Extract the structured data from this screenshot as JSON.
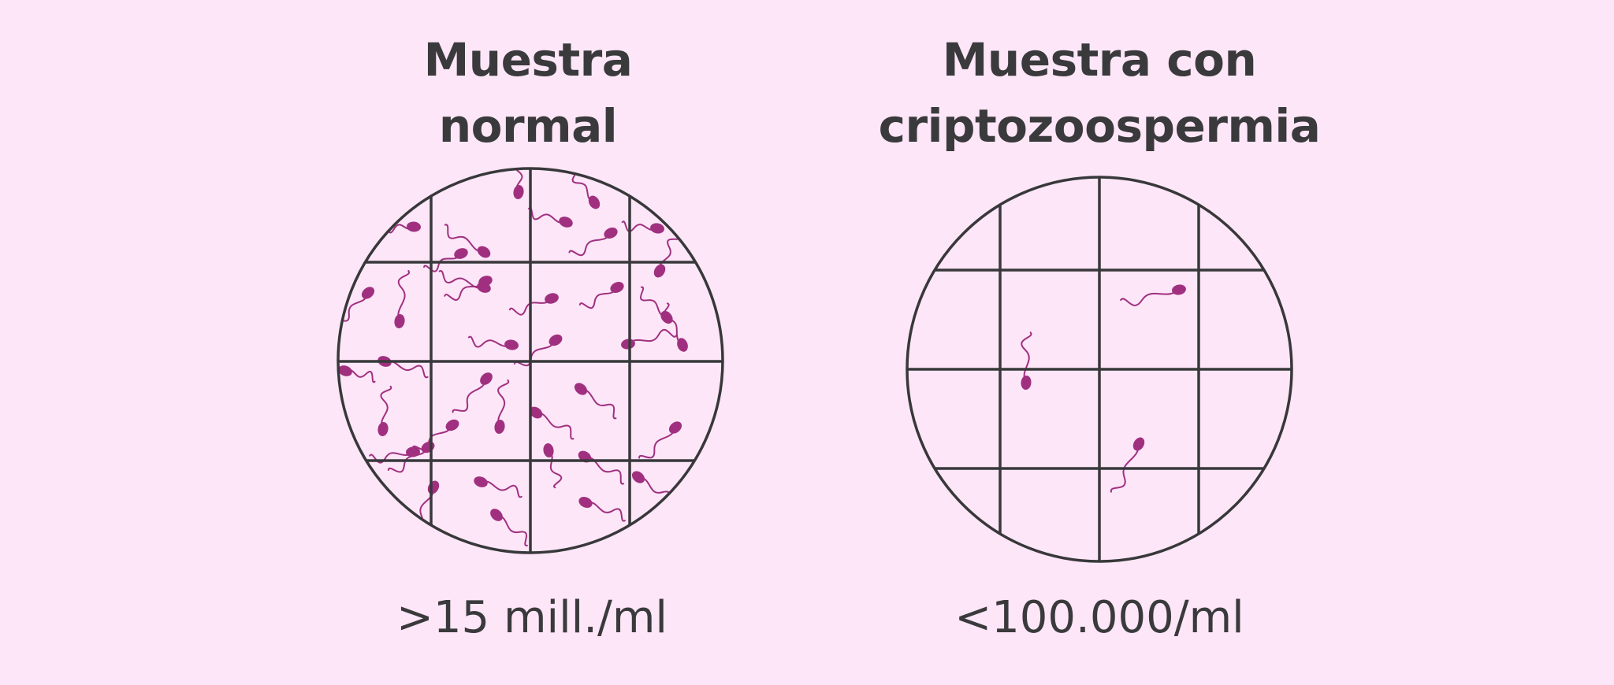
{
  "panels": [
    {
      "title_line1": "Muestra",
      "title_line2": "normal",
      "count": ">15 mill./ml"
    },
    {
      "title_line1": "Muestra con",
      "title_line2": "criptozoospermia",
      "count": "<100.000/ml"
    }
  ],
  "colors": {
    "background": "#fde6f8",
    "grid": "#38383a",
    "sperm": "#a0307f",
    "text": "#3a3a3c"
  }
}
